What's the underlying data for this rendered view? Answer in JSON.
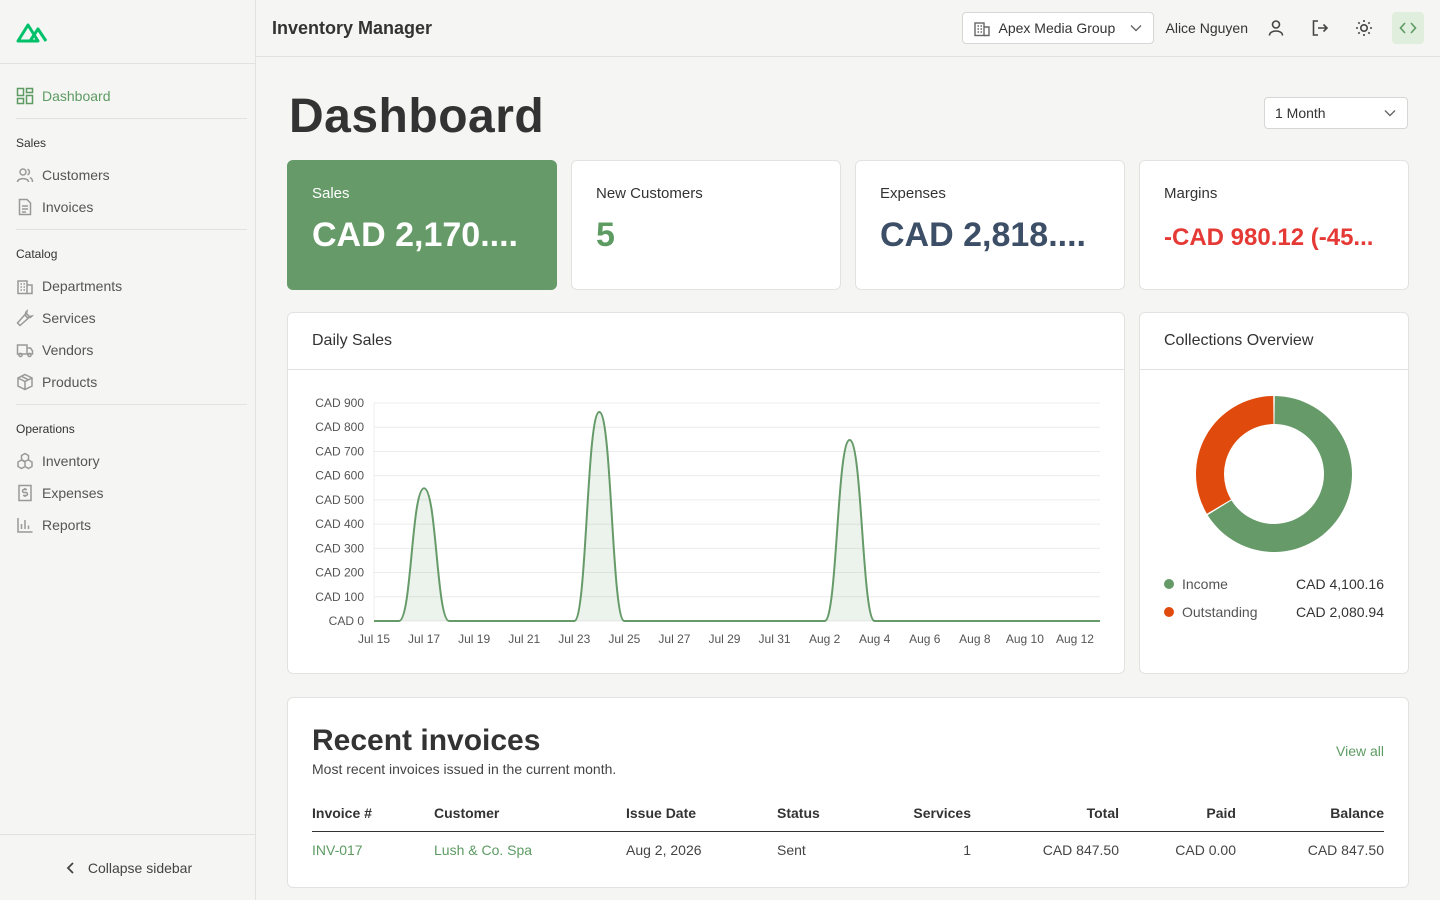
{
  "app": {
    "title": "Inventory Manager"
  },
  "header": {
    "org": "Apex Media Group",
    "user": "Alice Nguyen"
  },
  "sidebar": {
    "dashboard": "Dashboard",
    "sections": [
      {
        "title": "Sales",
        "items": [
          "Customers",
          "Invoices"
        ]
      },
      {
        "title": "Catalog",
        "items": [
          "Departments",
          "Services",
          "Vendors",
          "Products"
        ]
      },
      {
        "title": "Operations",
        "items": [
          "Inventory",
          "Expenses",
          "Reports"
        ]
      }
    ],
    "collapse": "Collapse sidebar"
  },
  "page": {
    "title": "Dashboard",
    "period": "1 Month"
  },
  "stats": [
    {
      "label": "Sales",
      "value": "CAD 2,170...."
    },
    {
      "label": "New Customers",
      "value": "5"
    },
    {
      "label": "Expenses",
      "value": "CAD 2,818...."
    },
    {
      "label": "Margins",
      "value": "-CAD 980.12 (-45..."
    }
  ],
  "colors": {
    "accent": "#5d9b63",
    "sales_card": "#669b69",
    "expenses": "#3d4f66",
    "negative": "#e53935",
    "outstanding": "#e04a0d"
  },
  "daily_sales": {
    "title": "Daily Sales",
    "chart_data": {
      "type": "area",
      "x": [
        "Jul 15",
        "Jul 16",
        "Jul 17",
        "Jul 18",
        "Jul 19",
        "Jul 20",
        "Jul 21",
        "Jul 22",
        "Jul 23",
        "Jul 24",
        "Jul 25",
        "Jul 26",
        "Jul 27",
        "Jul 28",
        "Jul 29",
        "Jul 30",
        "Jul 31",
        "Aug 1",
        "Aug 2",
        "Aug 3",
        "Aug 4",
        "Aug 5",
        "Aug 6",
        "Aug 7",
        "Aug 8",
        "Aug 9",
        "Aug 10",
        "Aug 11",
        "Aug 12",
        "Aug 13"
      ],
      "x_ticks": [
        "Jul 15",
        "Jul 17",
        "Jul 19",
        "Jul 21",
        "Jul 23",
        "Jul 25",
        "Jul 27",
        "Jul 29",
        "Jul 31",
        "Aug 2",
        "Aug 4",
        "Aug 6",
        "Aug 8",
        "Aug 10",
        "Aug 12"
      ],
      "values": [
        0,
        0,
        548,
        0,
        0,
        0,
        0,
        0,
        0,
        863,
        0,
        0,
        0,
        0,
        0,
        0,
        0,
        0,
        0,
        747,
        0,
        0,
        0,
        0,
        0,
        0,
        0,
        0,
        0,
        0
      ],
      "y_ticks": [
        "CAD 0",
        "CAD 100",
        "CAD 200",
        "CAD 300",
        "CAD 400",
        "CAD 500",
        "CAD 600",
        "CAD 700",
        "CAD 800",
        "CAD 900"
      ],
      "ylim": [
        0,
        900
      ],
      "grid": true
    }
  },
  "collections": {
    "title": "Collections Overview",
    "chart_data": {
      "type": "pie",
      "series": [
        {
          "name": "Income",
          "value": 4100.16,
          "label": "CAD 4,100.16",
          "color": "#669b69"
        },
        {
          "name": "Outstanding",
          "value": 2080.94,
          "label": "CAD 2,080.94",
          "color": "#e04a0d"
        }
      ]
    }
  },
  "invoices": {
    "title": "Recent invoices",
    "subtitle": "Most recent invoices issued in the current month.",
    "view_all": "View all",
    "columns": [
      "Invoice #",
      "Customer",
      "Issue Date",
      "Status",
      "Services",
      "Total",
      "Paid",
      "Balance"
    ],
    "rows": [
      [
        "INV-017",
        "Lush & Co. Spa",
        "Aug 2, 2026",
        "Sent",
        "1",
        "CAD 847.50",
        "CAD 0.00",
        "CAD 847.50"
      ]
    ]
  }
}
